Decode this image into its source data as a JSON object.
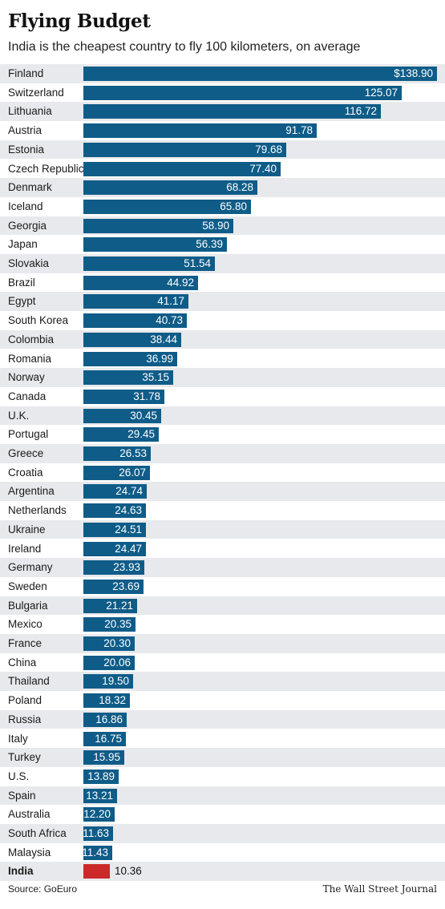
{
  "title": "Flying Budget",
  "subtitle": "India is the cheapest country to fly 100 kilometers, on average",
  "source": "Source: GoEuro",
  "credit": "The Wall Street Journal",
  "colors": {
    "bar": "#0f5c88",
    "highlight": "#cc2a2a",
    "shade": "#e7e9ec"
  },
  "chart_data": {
    "type": "bar",
    "orientation": "horizontal",
    "categories": [
      "Finland",
      "Switzerland",
      "Lithuania",
      "Austria",
      "Estonia",
      "Czech Republic",
      "Denmark",
      "Iceland",
      "Georgia",
      "Japan",
      "Slovakia",
      "Brazil",
      "Egypt",
      "South Korea",
      "Colombia",
      "Romania",
      "Norway",
      "Canada",
      "U.K.",
      "Portugal",
      "Greece",
      "Croatia",
      "Argentina",
      "Netherlands",
      "Ukraine",
      "Ireland",
      "Germany",
      "Sweden",
      "Bulgaria",
      "Mexico",
      "France",
      "China",
      "Thailand",
      "Poland",
      "Russia",
      "Italy",
      "Turkey",
      "U.S.",
      "Spain",
      "Australia",
      "South Africa",
      "Malaysia",
      "India"
    ],
    "values": [
      138.9,
      125.07,
      116.72,
      91.78,
      79.68,
      77.4,
      68.28,
      65.8,
      58.9,
      56.39,
      51.54,
      44.92,
      41.17,
      40.73,
      38.44,
      36.99,
      35.15,
      31.78,
      30.45,
      29.45,
      26.53,
      26.07,
      24.74,
      24.63,
      24.51,
      24.47,
      23.93,
      23.69,
      21.21,
      20.35,
      20.3,
      20.06,
      19.5,
      18.32,
      16.86,
      16.75,
      15.95,
      13.89,
      13.21,
      12.2,
      11.63,
      11.43,
      10.36
    ],
    "labels": [
      "$138.90",
      "125.07",
      "116.72",
      "91.78",
      "79.68",
      "77.40",
      "68.28",
      "65.80",
      "58.90",
      "56.39",
      "51.54",
      "44.92",
      "41.17",
      "40.73",
      "38.44",
      "36.99",
      "35.15",
      "31.78",
      "30.45",
      "29.45",
      "26.53",
      "26.07",
      "24.74",
      "24.63",
      "24.51",
      "24.47",
      "23.93",
      "23.69",
      "21.21",
      "20.35",
      "20.30",
      "20.06",
      "19.50",
      "18.32",
      "16.86",
      "16.75",
      "15.95",
      "13.89",
      "13.21",
      "12.20",
      "11.63",
      "11.43",
      "10.36"
    ],
    "highlight": "India",
    "xlim": [
      0,
      138.9
    ],
    "grid": false
  }
}
